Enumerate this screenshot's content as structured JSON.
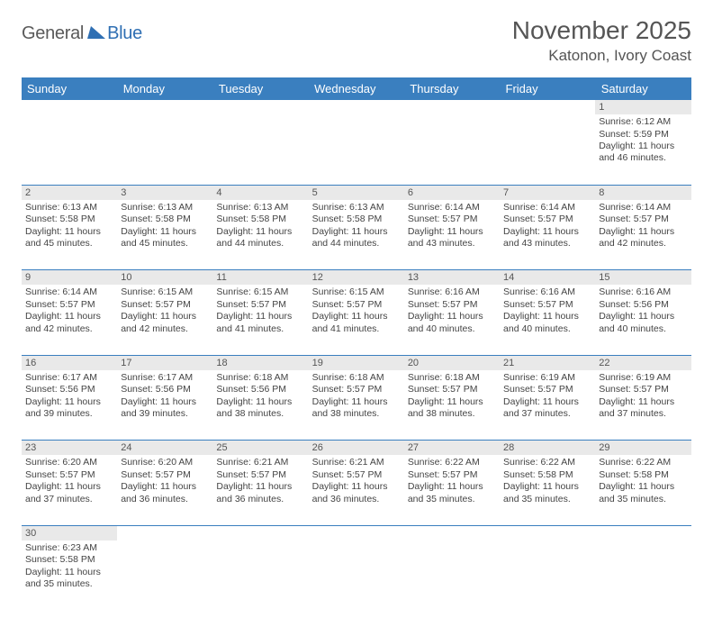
{
  "logo": {
    "text1": "General",
    "text2": "Blue",
    "color1": "#5a5a5a",
    "color2": "#2f6fb3",
    "tri_color": "#2f6fb3"
  },
  "title": "November 2025",
  "location": "Katonon, Ivory Coast",
  "styling": {
    "header_bg": "#3a7fbf",
    "header_text": "#ffffff",
    "daynum_bg": "#e9e9e9",
    "cell_border": "#3a7fbf",
    "body_text": "#444444",
    "font_family": "Arial",
    "title_fontsize": 28,
    "cell_fontsize": 10.5
  },
  "weekdays": [
    "Sunday",
    "Monday",
    "Tuesday",
    "Wednesday",
    "Thursday",
    "Friday",
    "Saturday"
  ],
  "weeks": [
    [
      null,
      null,
      null,
      null,
      null,
      null,
      {
        "n": "1",
        "sr": "Sunrise: 6:12 AM",
        "ss": "Sunset: 5:59 PM",
        "dl": "Daylight: 11 hours and 46 minutes."
      }
    ],
    [
      {
        "n": "2",
        "sr": "Sunrise: 6:13 AM",
        "ss": "Sunset: 5:58 PM",
        "dl": "Daylight: 11 hours and 45 minutes."
      },
      {
        "n": "3",
        "sr": "Sunrise: 6:13 AM",
        "ss": "Sunset: 5:58 PM",
        "dl": "Daylight: 11 hours and 45 minutes."
      },
      {
        "n": "4",
        "sr": "Sunrise: 6:13 AM",
        "ss": "Sunset: 5:58 PM",
        "dl": "Daylight: 11 hours and 44 minutes."
      },
      {
        "n": "5",
        "sr": "Sunrise: 6:13 AM",
        "ss": "Sunset: 5:58 PM",
        "dl": "Daylight: 11 hours and 44 minutes."
      },
      {
        "n": "6",
        "sr": "Sunrise: 6:14 AM",
        "ss": "Sunset: 5:57 PM",
        "dl": "Daylight: 11 hours and 43 minutes."
      },
      {
        "n": "7",
        "sr": "Sunrise: 6:14 AM",
        "ss": "Sunset: 5:57 PM",
        "dl": "Daylight: 11 hours and 43 minutes."
      },
      {
        "n": "8",
        "sr": "Sunrise: 6:14 AM",
        "ss": "Sunset: 5:57 PM",
        "dl": "Daylight: 11 hours and 42 minutes."
      }
    ],
    [
      {
        "n": "9",
        "sr": "Sunrise: 6:14 AM",
        "ss": "Sunset: 5:57 PM",
        "dl": "Daylight: 11 hours and 42 minutes."
      },
      {
        "n": "10",
        "sr": "Sunrise: 6:15 AM",
        "ss": "Sunset: 5:57 PM",
        "dl": "Daylight: 11 hours and 42 minutes."
      },
      {
        "n": "11",
        "sr": "Sunrise: 6:15 AM",
        "ss": "Sunset: 5:57 PM",
        "dl": "Daylight: 11 hours and 41 minutes."
      },
      {
        "n": "12",
        "sr": "Sunrise: 6:15 AM",
        "ss": "Sunset: 5:57 PM",
        "dl": "Daylight: 11 hours and 41 minutes."
      },
      {
        "n": "13",
        "sr": "Sunrise: 6:16 AM",
        "ss": "Sunset: 5:57 PM",
        "dl": "Daylight: 11 hours and 40 minutes."
      },
      {
        "n": "14",
        "sr": "Sunrise: 6:16 AM",
        "ss": "Sunset: 5:57 PM",
        "dl": "Daylight: 11 hours and 40 minutes."
      },
      {
        "n": "15",
        "sr": "Sunrise: 6:16 AM",
        "ss": "Sunset: 5:56 PM",
        "dl": "Daylight: 11 hours and 40 minutes."
      }
    ],
    [
      {
        "n": "16",
        "sr": "Sunrise: 6:17 AM",
        "ss": "Sunset: 5:56 PM",
        "dl": "Daylight: 11 hours and 39 minutes."
      },
      {
        "n": "17",
        "sr": "Sunrise: 6:17 AM",
        "ss": "Sunset: 5:56 PM",
        "dl": "Daylight: 11 hours and 39 minutes."
      },
      {
        "n": "18",
        "sr": "Sunrise: 6:18 AM",
        "ss": "Sunset: 5:56 PM",
        "dl": "Daylight: 11 hours and 38 minutes."
      },
      {
        "n": "19",
        "sr": "Sunrise: 6:18 AM",
        "ss": "Sunset: 5:57 PM",
        "dl": "Daylight: 11 hours and 38 minutes."
      },
      {
        "n": "20",
        "sr": "Sunrise: 6:18 AM",
        "ss": "Sunset: 5:57 PM",
        "dl": "Daylight: 11 hours and 38 minutes."
      },
      {
        "n": "21",
        "sr": "Sunrise: 6:19 AM",
        "ss": "Sunset: 5:57 PM",
        "dl": "Daylight: 11 hours and 37 minutes."
      },
      {
        "n": "22",
        "sr": "Sunrise: 6:19 AM",
        "ss": "Sunset: 5:57 PM",
        "dl": "Daylight: 11 hours and 37 minutes."
      }
    ],
    [
      {
        "n": "23",
        "sr": "Sunrise: 6:20 AM",
        "ss": "Sunset: 5:57 PM",
        "dl": "Daylight: 11 hours and 37 minutes."
      },
      {
        "n": "24",
        "sr": "Sunrise: 6:20 AM",
        "ss": "Sunset: 5:57 PM",
        "dl": "Daylight: 11 hours and 36 minutes."
      },
      {
        "n": "25",
        "sr": "Sunrise: 6:21 AM",
        "ss": "Sunset: 5:57 PM",
        "dl": "Daylight: 11 hours and 36 minutes."
      },
      {
        "n": "26",
        "sr": "Sunrise: 6:21 AM",
        "ss": "Sunset: 5:57 PM",
        "dl": "Daylight: 11 hours and 36 minutes."
      },
      {
        "n": "27",
        "sr": "Sunrise: 6:22 AM",
        "ss": "Sunset: 5:57 PM",
        "dl": "Daylight: 11 hours and 35 minutes."
      },
      {
        "n": "28",
        "sr": "Sunrise: 6:22 AM",
        "ss": "Sunset: 5:58 PM",
        "dl": "Daylight: 11 hours and 35 minutes."
      },
      {
        "n": "29",
        "sr": "Sunrise: 6:22 AM",
        "ss": "Sunset: 5:58 PM",
        "dl": "Daylight: 11 hours and 35 minutes."
      }
    ],
    [
      {
        "n": "30",
        "sr": "Sunrise: 6:23 AM",
        "ss": "Sunset: 5:58 PM",
        "dl": "Daylight: 11 hours and 35 minutes."
      },
      null,
      null,
      null,
      null,
      null,
      null
    ]
  ]
}
